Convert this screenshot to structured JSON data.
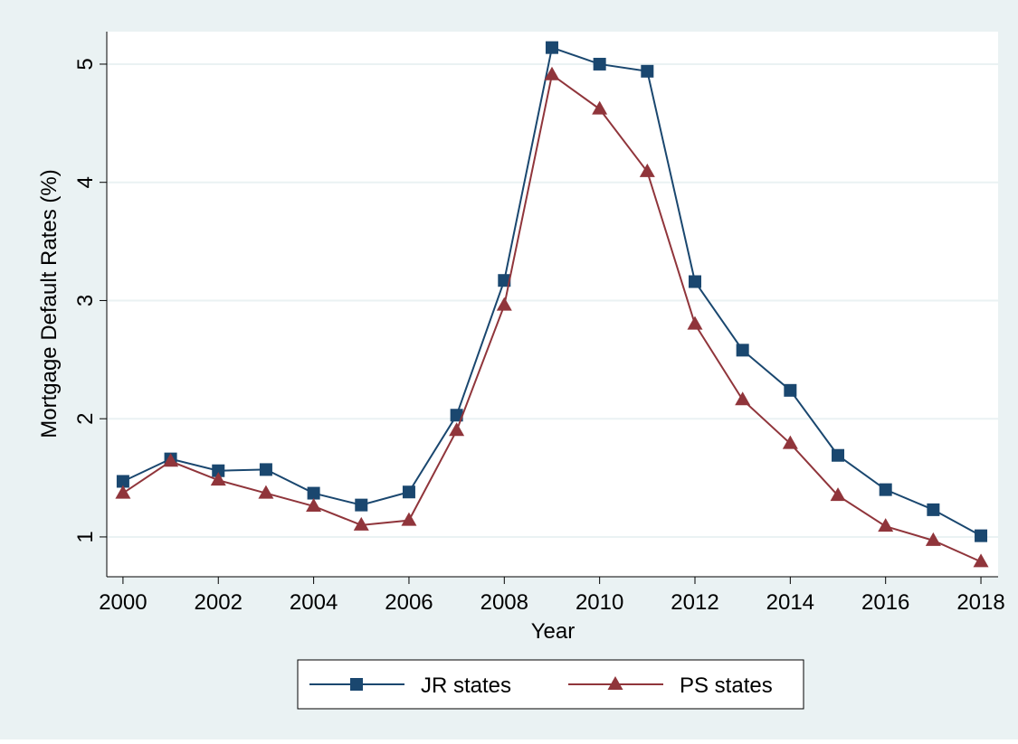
{
  "chart_data": {
    "type": "line",
    "x_label": "Year",
    "y_label": "Mortgage Default Rates (%)",
    "x": [
      2000,
      2001,
      2002,
      2003,
      2004,
      2005,
      2006,
      2007,
      2008,
      2009,
      2010,
      2011,
      2012,
      2013,
      2014,
      2015,
      2016,
      2017,
      2018
    ],
    "series": [
      {
        "name": "JR states",
        "color": "#1a476f",
        "marker": "square",
        "values": [
          1.47,
          1.66,
          1.56,
          1.57,
          1.37,
          1.27,
          1.38,
          2.03,
          3.17,
          5.14,
          5.0,
          4.94,
          3.16,
          2.58,
          2.24,
          1.69,
          1.4,
          1.23,
          1.01
        ]
      },
      {
        "name": "PS states",
        "color": "#90353b",
        "marker": "triangle",
        "values": [
          1.37,
          1.64,
          1.48,
          1.37,
          1.26,
          1.1,
          1.14,
          1.9,
          2.96,
          4.91,
          4.62,
          4.09,
          2.8,
          2.16,
          1.79,
          1.35,
          1.09,
          0.97,
          0.79
        ]
      }
    ],
    "xlim": [
      1999.66,
      2018.36
    ],
    "ylim": [
      0.663,
      5.275
    ],
    "xticks": [
      2000,
      2002,
      2004,
      2006,
      2008,
      2010,
      2012,
      2014,
      2016,
      2018
    ],
    "yticks": [
      1,
      2,
      3,
      4,
      5
    ],
    "grid": true,
    "legend": "bottom"
  }
}
